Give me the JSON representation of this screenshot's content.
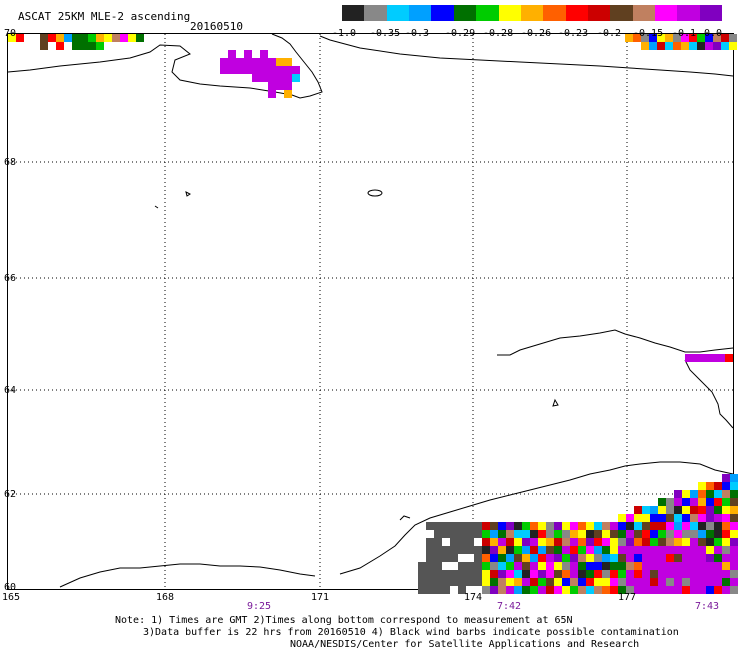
{
  "title": "ASCAT 25KM MLE-2 ascending",
  "date": "20160510",
  "colorbar": {
    "labels": [
      "-1.0",
      "-0.35",
      "-0.3",
      "-0.29",
      "-0.28",
      "-0.26",
      "-0.23",
      "-0.2",
      "-0.15",
      "-0.1",
      "0.0"
    ],
    "colors": [
      "#222222",
      "#888888",
      "#00ccff",
      "#00a0ff",
      "#0000ff",
      "#007000",
      "#00cc00",
      "#ffff00",
      "#ffb000",
      "#ff6000",
      "#ff0000",
      "#cc0000",
      "#604020",
      "#c08060",
      "#ff00ff",
      "#c000e0",
      "#8000c0"
    ]
  },
  "lat_labels": [
    "70",
    "68",
    "66",
    "64",
    "62",
    "60"
  ],
  "lon_labels": [
    "165",
    "168",
    "171",
    "174",
    "177"
  ],
  "times": [
    "9:25",
    "7:42",
    "7:43"
  ],
  "notes": [
    "Note: 1) Times are GMT 2)Times along bottom correspond to measurement at 65N",
    "3)Data buffer is 22 hrs from 20160510 4) Black wind barbs indicate possible contamination",
    "NOAA/NESDIS/Center for Satellite Applications and Research"
  ]
}
